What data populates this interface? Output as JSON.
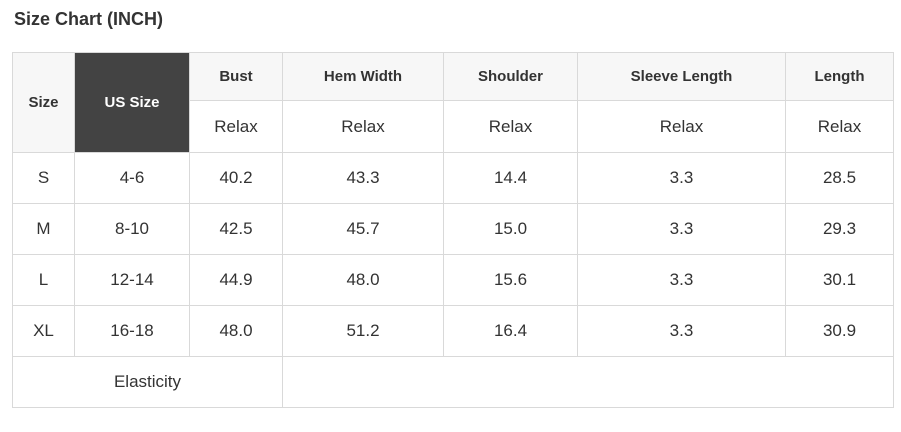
{
  "page": {
    "title": "Size Chart (INCH)"
  },
  "table": {
    "headers": {
      "size": "Size",
      "us_size": "US Size",
      "columns": [
        "Bust",
        "Hem Width",
        "Shoulder",
        "Sleeve Length",
        "Length"
      ]
    },
    "fit_labels": [
      "Relax",
      "Relax",
      "Relax",
      "Relax",
      "Relax"
    ],
    "rows": [
      {
        "size": "S",
        "us_size": "4-6",
        "bust": "40.2",
        "hem_width": "43.3",
        "shoulder": "14.4",
        "sleeve_length": "3.3",
        "length": "28.5"
      },
      {
        "size": "M",
        "us_size": "8-10",
        "bust": "42.5",
        "hem_width": "45.7",
        "shoulder": "15.0",
        "sleeve_length": "3.3",
        "length": "29.3"
      },
      {
        "size": "L",
        "us_size": "12-14",
        "bust": "44.9",
        "hem_width": "48.0",
        "shoulder": "15.6",
        "sleeve_length": "3.3",
        "length": "30.1"
      },
      {
        "size": "XL",
        "us_size": "16-18",
        "bust": "48.0",
        "hem_width": "51.2",
        "shoulder": "16.4",
        "sleeve_length": "3.3",
        "length": "30.9"
      }
    ],
    "footer": {
      "label": "Elasticity",
      "value": ""
    }
  },
  "colors": {
    "us_size_header_bg": "#434343",
    "us_size_header_text": "#ffffff",
    "header_bg": "#f7f7f7",
    "border": "#d9d9d9",
    "text": "#333333"
  }
}
